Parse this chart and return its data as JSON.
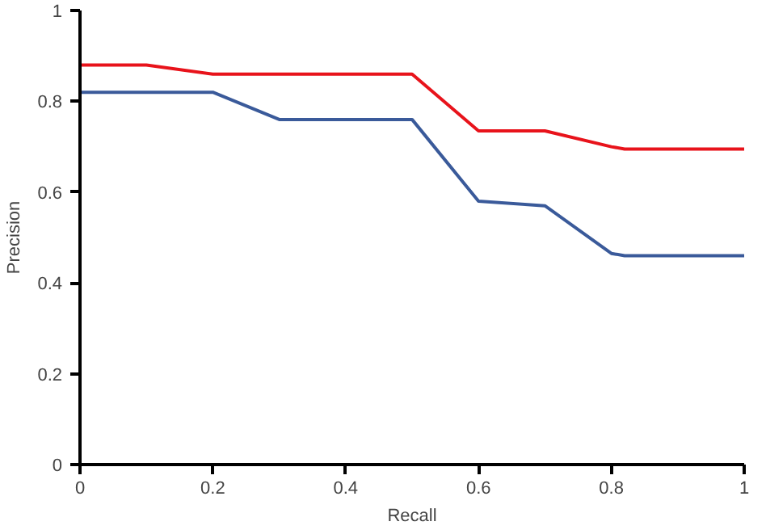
{
  "chart_data": {
    "type": "line",
    "xlabel": "Recall",
    "ylabel": "Precision",
    "xlim": [
      0,
      1
    ],
    "ylim": [
      0,
      1
    ],
    "xticks": [
      0,
      0.2,
      0.4,
      0.6,
      0.8,
      1
    ],
    "yticks": [
      0,
      0.2,
      0.4,
      0.6,
      0.8,
      1
    ],
    "grid": false,
    "marker": "none",
    "line_style": "solid",
    "series": [
      {
        "color": "#e8131b",
        "x": [
          0,
          0.1,
          0.2,
          0.5,
          0.6,
          0.7,
          0.8,
          0.82,
          1
        ],
        "values": [
          0.88,
          0.88,
          0.86,
          0.86,
          0.735,
          0.735,
          0.7,
          0.695,
          0.695
        ]
      },
      {
        "color": "#3a5a9a",
        "x": [
          0,
          0.2,
          0.3,
          0.5,
          0.6,
          0.7,
          0.8,
          0.82,
          1
        ],
        "values": [
          0.82,
          0.82,
          0.76,
          0.76,
          0.58,
          0.57,
          0.465,
          0.46,
          0.46
        ]
      }
    ]
  }
}
